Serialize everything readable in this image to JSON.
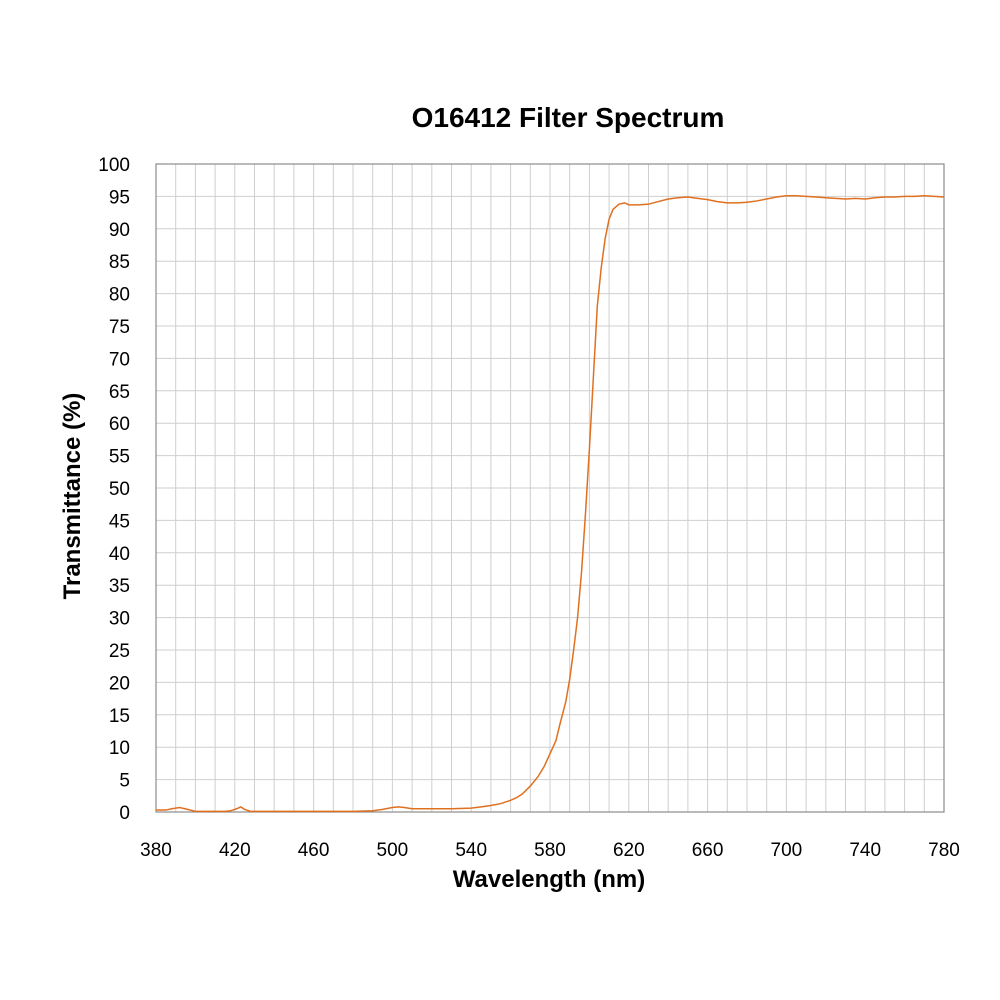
{
  "chart_data": {
    "type": "line",
    "title": "O16412 Filter Spectrum",
    "xlabel": "Wavelength (nm)",
    "ylabel": "Transmittance (%)",
    "xlim": [
      380,
      780
    ],
    "ylim": [
      0,
      100
    ],
    "x_ticks": [
      380,
      420,
      460,
      500,
      540,
      580,
      620,
      660,
      700,
      740,
      780
    ],
    "y_ticks": [
      0,
      5,
      10,
      15,
      20,
      25,
      30,
      35,
      40,
      45,
      50,
      55,
      60,
      65,
      70,
      75,
      80,
      85,
      90,
      95,
      100
    ],
    "x_minor_step": 10,
    "grid": true,
    "legend": "none",
    "line_color": "#e07020",
    "series": [
      {
        "x": [
          380,
          385,
          388,
          392,
          396,
          400,
          405,
          410,
          415,
          418,
          421,
          423,
          425,
          428,
          432,
          440,
          450,
          460,
          470,
          480,
          490,
          495,
          500,
          503,
          506,
          510,
          515,
          520,
          530,
          540,
          545,
          550,
          555,
          560,
          563,
          566,
          570,
          574,
          577,
          580,
          583,
          585,
          588,
          590,
          592,
          594,
          596,
          598,
          600,
          602,
          604,
          606,
          608,
          610,
          612,
          615,
          618,
          620,
          625,
          630,
          635,
          640,
          645,
          650,
          655,
          660,
          665,
          670,
          675,
          680,
          685,
          690,
          695,
          700,
          705,
          710,
          715,
          720,
          725,
          730,
          735,
          740,
          745,
          750,
          755,
          760,
          765,
          770,
          775,
          780
        ],
        "y": [
          0.3,
          0.3,
          0.5,
          0.7,
          0.4,
          0.1,
          0.1,
          0.1,
          0.1,
          0.2,
          0.5,
          0.8,
          0.4,
          0.1,
          0.1,
          0.1,
          0.1,
          0.1,
          0.1,
          0.1,
          0.2,
          0.4,
          0.7,
          0.8,
          0.7,
          0.5,
          0.5,
          0.5,
          0.5,
          0.6,
          0.8,
          1.0,
          1.3,
          1.8,
          2.2,
          2.8,
          4.0,
          5.5,
          7.0,
          9.0,
          11.0,
          13.5,
          17.0,
          20.5,
          25.0,
          30.0,
          37.0,
          46.0,
          56.0,
          67.0,
          78.0,
          84.0,
          88.5,
          91.5,
          93.0,
          93.8,
          94.0,
          93.7,
          93.7,
          93.8,
          94.2,
          94.6,
          94.8,
          94.9,
          94.7,
          94.5,
          94.2,
          94.0,
          94.0,
          94.1,
          94.3,
          94.6,
          94.9,
          95.1,
          95.1,
          95.0,
          94.9,
          94.8,
          94.7,
          94.6,
          94.7,
          94.6,
          94.8,
          94.9,
          94.9,
          95.0,
          95.0,
          95.1,
          95.0,
          94.9
        ]
      }
    ]
  }
}
